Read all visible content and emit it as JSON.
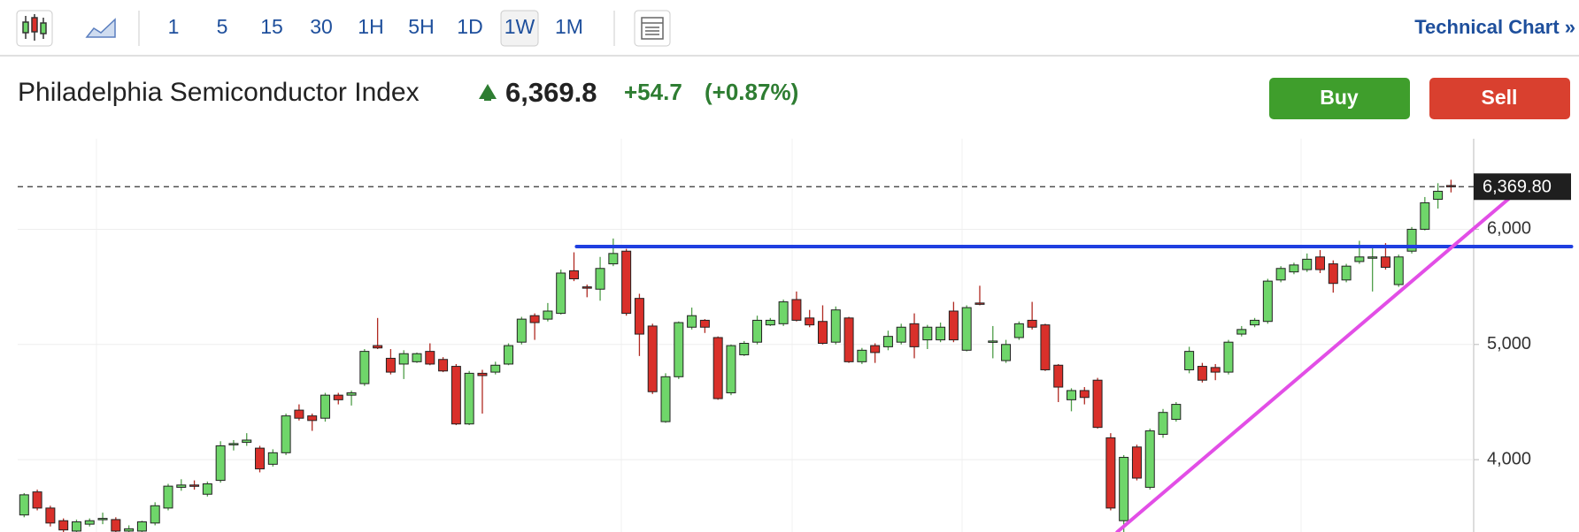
{
  "toolbar": {
    "intervals": [
      "1",
      "5",
      "15",
      "30",
      "1H",
      "5H",
      "1D",
      "1W",
      "1M"
    ],
    "selected": "1W",
    "link": "Technical Chart »"
  },
  "quote": {
    "name": "Philadelphia Semiconductor Index",
    "price": "6,369.8",
    "change": "+54.7",
    "change_pct": "(+0.87%)"
  },
  "buttons": {
    "buy": "Buy",
    "sell": "Sell"
  },
  "chart_data": {
    "type": "candlestick",
    "up_color": "#6fd66a",
    "down_color": "#d9302a",
    "ylim": [
      3372,
      6786
    ],
    "yticks": [
      {
        "value": 4000,
        "label": "4,000"
      },
      {
        "value": 5000,
        "label": "5,000"
      },
      {
        "value": 6000,
        "label": "6,000"
      }
    ],
    "grid": true,
    "last_price": {
      "value": 6369.8,
      "label": "6,369.80"
    },
    "trendlines": [
      {
        "color": "#1f3fe0",
        "from": [
          42.2,
          5850
        ],
        "to": [
          118.2,
          5850
        ]
      },
      {
        "color": "#e24ee6",
        "from": [
          83.5,
          3372
        ],
        "to": [
          115,
          6419
        ]
      }
    ],
    "open": [
      3520,
      3720,
      3580,
      3470,
      3380,
      3440,
      3480,
      3480,
      3380,
      3380,
      3450,
      3580,
      3760,
      3780,
      3700,
      3820,
      4130,
      4150,
      4100,
      3960,
      4060,
      4430,
      4380,
      4360,
      4560,
      4560,
      4660,
      4990,
      4880,
      4830,
      4850,
      4940,
      4870,
      4810,
      4310,
      4750,
      4760,
      4830,
      5020,
      5250,
      5220,
      5270,
      5640,
      5500,
      5480,
      5700,
      5810,
      5400,
      5160,
      4330,
      4720,
      5150,
      5210,
      5060,
      4580,
      4910,
      5020,
      5170,
      5180,
      5390,
      5230,
      5200,
      5020,
      5230,
      4850,
      4990,
      4980,
      5020,
      5180,
      5040,
      5040,
      5290,
      4950,
      5360,
      5020,
      4860,
      5060,
      5210,
      5170,
      4820,
      4520,
      4600,
      4690,
      4190,
      3470,
      4110,
      3760,
      4220,
      4350,
      4780,
      4810,
      4800,
      4760,
      5090,
      5170,
      5200,
      5560,
      5630,
      5650,
      5760,
      5700,
      5560,
      5720,
      5760,
      5760,
      5520,
      5810,
      6000,
      6260,
      6380
    ],
    "high": [
      3710,
      3740,
      3600,
      3490,
      3480,
      3490,
      3540,
      3500,
      3430,
      3470,
      3630,
      3790,
      3830,
      3820,
      3810,
      4160,
      4170,
      4230,
      4120,
      4090,
      4400,
      4480,
      4400,
      4580,
      4580,
      4600,
      4960,
      5230,
      4960,
      4950,
      4930,
      5010,
      4890,
      4830,
      4770,
      4780,
      4850,
      5010,
      5240,
      5270,
      5360,
      5650,
      5800,
      5520,
      5760,
      5920,
      5830,
      5440,
      5180,
      4750,
      5200,
      5320,
      5220,
      5070,
      5000,
      5030,
      5250,
      5230,
      5390,
      5460,
      5300,
      5340,
      5330,
      5240,
      4970,
      5010,
      5120,
      5180,
      5270,
      5170,
      5190,
      5370,
      5340,
      5510,
      5160,
      5040,
      5200,
      5370,
      5180,
      4830,
      4620,
      4630,
      4710,
      4230,
      4040,
      4130,
      4270,
      4440,
      4500,
      4980,
      4840,
      4830,
      5040,
      5160,
      5230,
      5570,
      5680,
      5710,
      5790,
      5820,
      5730,
      5700,
      5900,
      5850,
      5880,
      5780,
      6020,
      6280,
      6400,
      6430
    ],
    "low": [
      3500,
      3560,
      3420,
      3330,
      3340,
      3420,
      3440,
      3340,
      3350,
      3360,
      3430,
      3560,
      3730,
      3740,
      3680,
      3800,
      4080,
      4120,
      3890,
      3940,
      4040,
      4340,
      4250,
      4330,
      4480,
      4470,
      4640,
      4960,
      4740,
      4700,
      4840,
      4820,
      4760,
      4300,
      4300,
      4400,
      4740,
      4820,
      5000,
      5040,
      5200,
      5260,
      5550,
      5410,
      5380,
      5680,
      5250,
      4900,
      4570,
      4320,
      4700,
      5130,
      5100,
      4520,
      4560,
      4900,
      5000,
      5160,
      5160,
      5200,
      5150,
      5000,
      5000,
      4840,
      4830,
      4840,
      4950,
      5000,
      4880,
      4960,
      5020,
      5020,
      4940,
      5340,
      4880,
      4840,
      5040,
      5130,
      4770,
      4500,
      4420,
      4480,
      4270,
      3560,
      3300,
      3820,
      3740,
      4190,
      4330,
      4750,
      4670,
      4690,
      4740,
      5070,
      5150,
      5180,
      5540,
      5610,
      5630,
      5620,
      5450,
      5540,
      5700,
      5460,
      5650,
      5500,
      5790,
      5990,
      6180,
      6320
    ],
    "close": [
      3695,
      3580,
      3450,
      3390,
      3460,
      3470,
      3490,
      3380,
      3400,
      3460,
      3600,
      3770,
      3780,
      3770,
      3790,
      4120,
      4140,
      4170,
      3920,
      4060,
      4380,
      4360,
      4340,
      4560,
      4520,
      4580,
      4940,
      4970,
      4760,
      4920,
      4920,
      4830,
      4770,
      4310,
      4750,
      4730,
      4820,
      4990,
      5220,
      5190,
      5290,
      5620,
      5570,
      5490,
      5660,
      5790,
      5270,
      5090,
      4590,
      4720,
      5190,
      5250,
      5150,
      4530,
      4990,
      5010,
      5210,
      5210,
      5370,
      5210,
      5170,
      5010,
      5300,
      4850,
      4950,
      4930,
      5070,
      5150,
      4980,
      5150,
      5150,
      5040,
      5320,
      5350,
      5030,
      5000,
      5180,
      5150,
      4780,
      4630,
      4600,
      4540,
      4280,
      3580,
      4020,
      3840,
      4250,
      4410,
      4480,
      4940,
      4690,
      4760,
      5020,
      5130,
      5210,
      5550,
      5660,
      5690,
      5740,
      5650,
      5530,
      5680,
      5760,
      5760,
      5670,
      5760,
      6000,
      6230,
      6330,
      6370
    ]
  }
}
